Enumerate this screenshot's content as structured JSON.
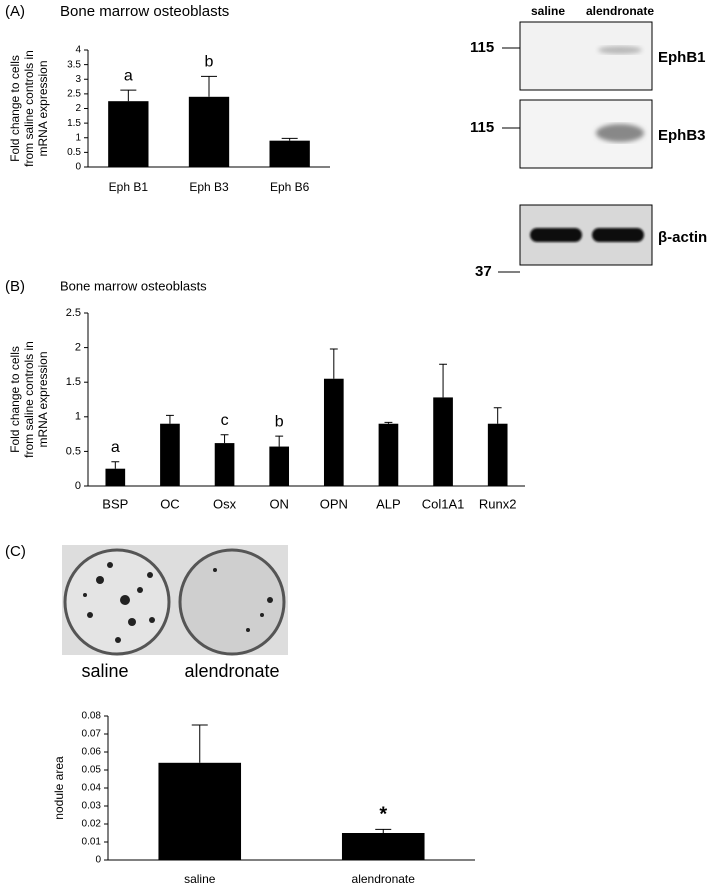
{
  "chart_data": [
    {
      "type": "bar",
      "panel": "(A)",
      "title": "Bone marrow osteoblasts",
      "ylabel": [
        "Fold change to cells",
        "from saline controls  in",
        "mRNA expression"
      ],
      "categories": [
        "Eph B1",
        "Eph B3",
        "Eph B6"
      ],
      "values": [
        2.25,
        2.4,
        0.9
      ],
      "errors": [
        0.38,
        0.7,
        0.08
      ],
      "annotations": [
        "a",
        "b",
        null
      ],
      "color": "#000000",
      "ylim": [
        0,
        4
      ],
      "yticks": [
        0,
        0.5,
        1,
        1.5,
        2,
        2.5,
        3,
        3.5,
        4
      ]
    },
    {
      "type": "bar",
      "panel": "(B)",
      "title": "Bone marrow osteoblasts",
      "ylabel": [
        "Fold change to cells",
        "from saline controls  in",
        "mRNA expression"
      ],
      "categories": [
        "BSP",
        "OC",
        "Osx",
        "ON",
        "OPN",
        "ALP",
        "Col1A1",
        "Runx2"
      ],
      "values": [
        0.25,
        0.9,
        0.62,
        0.57,
        1.55,
        0.9,
        1.28,
        0.9
      ],
      "errors": [
        0.1,
        0.12,
        0.12,
        0.15,
        0.43,
        0.02,
        0.48,
        0.23
      ],
      "annotations": [
        "a",
        null,
        "c",
        "b",
        null,
        null,
        null,
        null
      ],
      "color": "#000000",
      "ylim": [
        0,
        2.5
      ],
      "yticks": [
        0,
        0.5,
        1,
        1.5,
        2,
        2.5
      ]
    },
    {
      "type": "bar",
      "ylabel": [
        "nodule area"
      ],
      "categories": [
        "saline",
        "alendronate"
      ],
      "values": [
        0.054,
        0.015
      ],
      "errors": [
        0.021,
        0.002
      ],
      "annotations": [
        null,
        "*"
      ],
      "color": "#000000",
      "ylim": [
        0,
        0.08
      ],
      "yticks": [
        0,
        0.01,
        0.02,
        0.03,
        0.04,
        0.05,
        0.06,
        0.07,
        0.08
      ]
    }
  ],
  "blot": {
    "lanes": [
      "saline",
      "alendronate"
    ],
    "markers": [
      "115",
      "115",
      "37"
    ],
    "proteins": [
      "EphB1",
      "EphB3",
      "β-actin"
    ]
  },
  "photo": {
    "panel": "(C)",
    "labels": [
      "saline",
      "alendronate"
    ]
  }
}
